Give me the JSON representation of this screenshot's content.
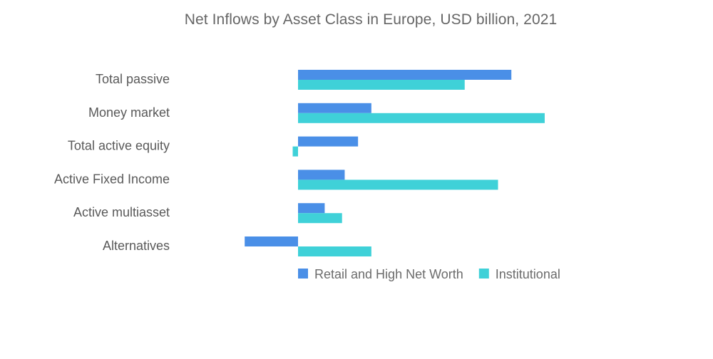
{
  "chart_data": {
    "type": "bar",
    "orientation": "horizontal",
    "title": "Net Inflows by Asset Class in Europe, USD billion, 2021",
    "xlabel": "",
    "ylabel": "",
    "categories": [
      "Total passive",
      "Money market",
      "Total active equity",
      "Active Fixed Income",
      "Active multiasset",
      "Alternatives"
    ],
    "series": [
      {
        "name": "Retail and High Net Worth",
        "color": "#4a8fe7",
        "values": [
          160,
          55,
          45,
          35,
          20,
          -40
        ]
      },
      {
        "name": "Institutional",
        "color": "#3fd1d8",
        "values": [
          125,
          185,
          -4,
          150,
          33,
          55
        ]
      }
    ],
    "xlim": [
      -45,
      190
    ],
    "grid": false,
    "axis_ticks_visible": false,
    "legend_position": "bottom"
  }
}
